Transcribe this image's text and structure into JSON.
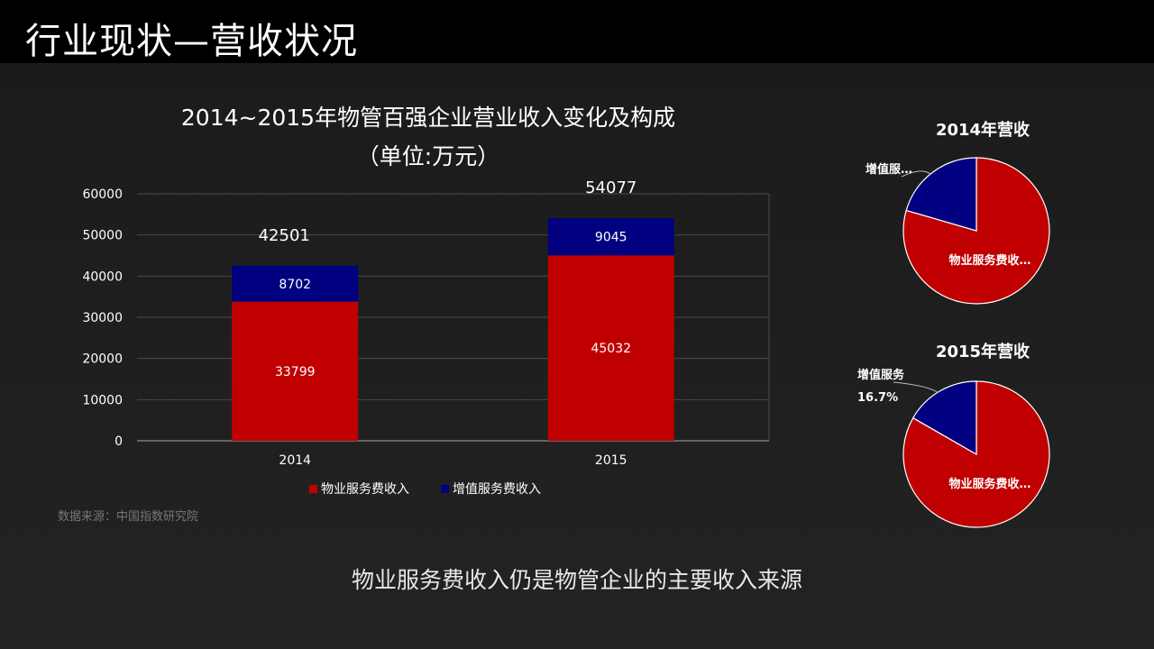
{
  "page_title": "行业现状—营收状况",
  "chart_title": "2014~2015年物管百强企业营业收入变化及构成",
  "chart_subtitle": "（单位:万元）",
  "source": "数据来源：中国指数研究院",
  "conclusion": "物业服务费收入仍是物管企业的主要收入来源",
  "colors": {
    "property_fee": "#c00000",
    "value_added": "#000080",
    "background": "#1e1e1e"
  },
  "chart_data": [
    {
      "type": "bar",
      "stacked": true,
      "categories": [
        "2014",
        "2015"
      ],
      "series": [
        {
          "name": "物业服务费收入",
          "values": [
            33799,
            45032
          ],
          "color": "#c00000"
        },
        {
          "name": "增值服务费收入",
          "values": [
            8702,
            9045
          ],
          "color": "#000080"
        }
      ],
      "totals": [
        42501,
        54077
      ],
      "ylim": [
        0,
        60000
      ],
      "yticks": [
        0,
        10000,
        20000,
        30000,
        40000,
        50000,
        60000
      ],
      "grid": true,
      "legend": "bottom"
    },
    {
      "type": "pie",
      "title": "2014年营收",
      "slices": [
        {
          "label": "物业服务费收…",
          "share": 0.795,
          "color": "#c00000"
        },
        {
          "label": "增值服…",
          "share": 0.205,
          "color": "#000080"
        }
      ]
    },
    {
      "type": "pie",
      "title": "2015年营收",
      "slices": [
        {
          "label": "物业服务费收…",
          "share": 0.833,
          "color": "#c00000"
        },
        {
          "label": "增值服务",
          "share": 0.167,
          "value_label": "16.7%",
          "color": "#000080"
        }
      ]
    }
  ]
}
